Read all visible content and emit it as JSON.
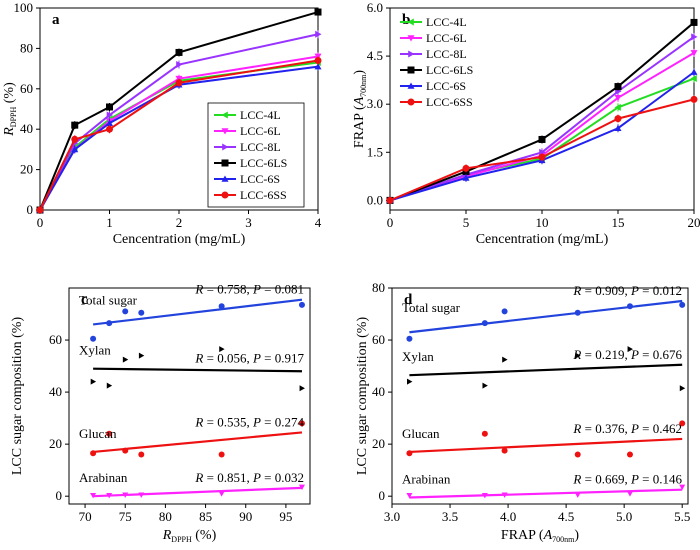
{
  "chart_data": [
    {
      "panel_label": "a",
      "type": "line",
      "xlabel": "Cencentration (mg/mL)",
      "ylabel_main": "R",
      "ylabel_sub": "DPPH",
      "ylabel_unit": "(%)",
      "xlim": [
        0,
        4
      ],
      "ylim": [
        0,
        100
      ],
      "x_ticks": [
        0,
        1,
        2,
        3,
        4
      ],
      "y_ticks": [
        0,
        20,
        40,
        60,
        80,
        100
      ],
      "x": [
        0,
        0.5,
        1,
        2,
        4
      ],
      "legend_position": "center-right",
      "series": [
        {
          "name": "LCC-4L",
          "color": "#22dd22",
          "marker": "triangle-left",
          "values": [
            0,
            31,
            45,
            64,
            73
          ]
        },
        {
          "name": "LCC-6L",
          "color": "#ff22ff",
          "marker": "triangle-down",
          "values": [
            0,
            30,
            44,
            65,
            76
          ]
        },
        {
          "name": "LCC-8L",
          "color": "#9933ff",
          "marker": "triangle-right",
          "values": [
            0,
            33,
            47,
            72,
            87
          ]
        },
        {
          "name": "LCC-6LS",
          "color": "#000000",
          "marker": "square",
          "values": [
            0,
            42,
            51,
            78,
            98
          ]
        },
        {
          "name": "LCC-6S",
          "color": "#2222ee",
          "marker": "triangle-up",
          "values": [
            0,
            30,
            43,
            62,
            71
          ]
        },
        {
          "name": "LCC-6SS",
          "color": "#ee1111",
          "marker": "circle",
          "values": [
            0,
            35,
            40,
            63,
            74
          ]
        }
      ]
    },
    {
      "panel_label": "b",
      "type": "line",
      "xlabel": "Cencentration (mg/mL)",
      "ylabel_main": "FRAP (",
      "ylabel_italic": "A",
      "ylabel_sub": "700nm",
      "ylabel_close": ")",
      "xlim": [
        0,
        20
      ],
      "ylim": [
        -0.3,
        6.0
      ],
      "x_ticks": [
        0,
        5,
        10,
        15,
        20
      ],
      "y_ticks": [
        0.0,
        1.5,
        3.0,
        4.5,
        6.0
      ],
      "y_tick_labels": [
        "0.0",
        "1.5",
        "3.0",
        "4.5",
        "6.0"
      ],
      "x": [
        0,
        5,
        10,
        15,
        20
      ],
      "legend_position": "top-left",
      "series": [
        {
          "name": "LCC-4L",
          "color": "#22dd22",
          "marker": "triangle-left",
          "values": [
            0,
            0.8,
            1.3,
            2.9,
            3.8
          ]
        },
        {
          "name": "LCC-6L",
          "color": "#ff22ff",
          "marker": "triangle-down",
          "values": [
            0,
            0.75,
            1.4,
            3.2,
            4.6
          ]
        },
        {
          "name": "LCC-8L",
          "color": "#9933ff",
          "marker": "triangle-right",
          "values": [
            0,
            0.8,
            1.5,
            3.4,
            5.1
          ]
        },
        {
          "name": "LCC-6LS",
          "color": "#000000",
          "marker": "square",
          "values": [
            0,
            0.9,
            1.9,
            3.55,
            5.55
          ]
        },
        {
          "name": "LCC-6S",
          "color": "#2222ee",
          "marker": "triangle-up",
          "values": [
            0,
            0.7,
            1.25,
            2.25,
            4.0
          ]
        },
        {
          "name": "LCC-6SS",
          "color": "#ee1111",
          "marker": "circle",
          "values": [
            0,
            1.0,
            1.35,
            2.55,
            3.15
          ]
        }
      ]
    },
    {
      "panel_label": "c",
      "type": "scatter",
      "xlabel_main": "R",
      "xlabel_sub": "DPPH",
      "xlabel_unit": "(%)",
      "ylabel": "LCC sugar composition (%)",
      "xlim": [
        68,
        98
      ],
      "ylim": [
        -3,
        80
      ],
      "x_ticks": [
        70,
        75,
        80,
        85,
        90,
        95
      ],
      "y_ticks": [
        0,
        20,
        40,
        60
      ],
      "series": [
        {
          "name": "Total sugar",
          "color": "#2244dd",
          "marker": "circle",
          "x": [
            71,
            73,
            75,
            77,
            87,
            97
          ],
          "y": [
            60.5,
            66.5,
            71,
            70.5,
            73,
            73.5
          ],
          "fit": [
            [
              71,
              66
            ],
            [
              97,
              75.5
            ]
          ],
          "annotation": {
            "R": "0.758",
            "P": "0.081"
          }
        },
        {
          "name": "Xylan",
          "color": "#000000",
          "marker": "triangle-right",
          "x": [
            71,
            73,
            75,
            77,
            87,
            97
          ],
          "y": [
            44,
            42.5,
            52.5,
            54,
            56.5,
            41.5
          ],
          "fit": [
            [
              71,
              49
            ],
            [
              97,
              48
            ]
          ],
          "annotation": {
            "R": "0.056",
            "P": "0.917"
          }
        },
        {
          "name": "Glucan",
          "color": "#ee1111",
          "marker": "circle",
          "x": [
            71,
            73,
            75,
            77,
            87,
            97
          ],
          "y": [
            16.5,
            24,
            17.5,
            16,
            16,
            28
          ],
          "fit": [
            [
              71,
              17
            ],
            [
              97,
              24.5
            ]
          ],
          "annotation": {
            "R": "0.535",
            "P": "0.274"
          }
        },
        {
          "name": "Arabinan",
          "color": "#ff22ff",
          "marker": "triangle-down",
          "x": [
            71,
            73,
            75,
            77,
            87,
            97
          ],
          "y": [
            0.3,
            0.3,
            0.5,
            0.5,
            1,
            3.5
          ],
          "fit": [
            [
              71,
              0
            ],
            [
              97,
              3.2
            ]
          ],
          "annotation": {
            "R": "0.851",
            "P": "0.032"
          }
        }
      ]
    },
    {
      "panel_label": "d",
      "type": "scatter",
      "xlabel_main": "FRAP (",
      "xlabel_italic": "A",
      "xlabel_sub": "700nm",
      "xlabel_close": ")",
      "ylabel": "LCC sugar composition (%)",
      "xlim": [
        3.0,
        5.55
      ],
      "ylim": [
        -3,
        80
      ],
      "x_ticks": [
        3.0,
        3.5,
        4.0,
        4.5,
        5.0,
        5.5
      ],
      "x_tick_labels": [
        "3.0",
        "3.5",
        "4.0",
        "4.5",
        "5.0",
        "5.5"
      ],
      "y_ticks": [
        0,
        20,
        40,
        60,
        80
      ],
      "series": [
        {
          "name": "Total sugar",
          "color": "#2244dd",
          "marker": "circle",
          "x": [
            3.15,
            3.8,
            3.97,
            4.6,
            5.05,
            5.5
          ],
          "y": [
            60.5,
            66.5,
            71,
            70.5,
            73,
            73.5
          ],
          "fit": [
            [
              3.15,
              63
            ],
            [
              5.5,
              75
            ]
          ],
          "annotation": {
            "R": "0.909",
            "P": "0.012"
          }
        },
        {
          "name": "Xylan",
          "color": "#000000",
          "marker": "triangle-right",
          "x": [
            3.15,
            3.8,
            3.97,
            4.6,
            5.05,
            5.5
          ],
          "y": [
            44,
            42.5,
            52.5,
            54,
            56.5,
            41.5
          ],
          "fit": [
            [
              3.15,
              46.5
            ],
            [
              5.5,
              50.5
            ]
          ],
          "annotation": {
            "R": "0.219",
            "P": "0.676"
          }
        },
        {
          "name": "Glucan",
          "color": "#ee1111",
          "marker": "circle",
          "x": [
            3.15,
            3.8,
            3.97,
            4.6,
            5.05,
            5.5
          ],
          "y": [
            16.5,
            24,
            17.5,
            16,
            16,
            28
          ],
          "fit": [
            [
              3.15,
              17
            ],
            [
              5.5,
              22
            ]
          ],
          "annotation": {
            "R": "0.376",
            "P": "0.462"
          }
        },
        {
          "name": "Arabinan",
          "color": "#ff22ff",
          "marker": "triangle-down",
          "x": [
            3.15,
            3.8,
            3.97,
            4.6,
            5.05,
            5.5
          ],
          "y": [
            0.3,
            0.3,
            0.5,
            0.5,
            1,
            3.5
          ],
          "fit": [
            [
              3.15,
              -0.5
            ],
            [
              5.5,
              2.5
            ]
          ],
          "annotation": {
            "R": "0.669",
            "P": "0.146"
          }
        }
      ]
    }
  ]
}
